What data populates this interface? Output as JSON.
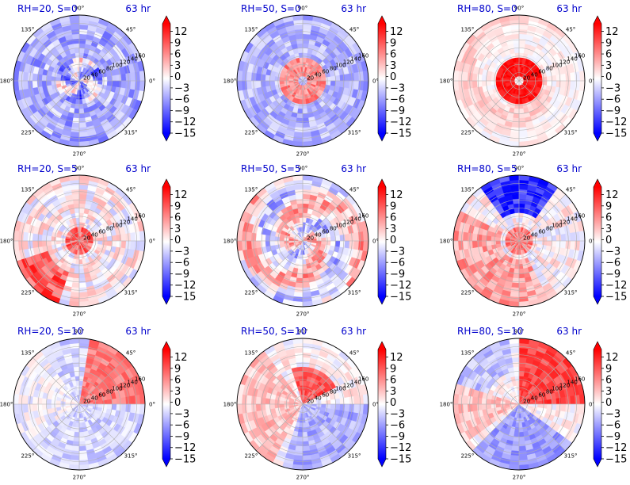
{
  "figure": {
    "time_label": "63 hr",
    "angle_labels": [
      "0°",
      "45°",
      "90°",
      "135°",
      "180°",
      "225°",
      "270°",
      "315°"
    ],
    "radial_labels": [
      "20",
      "40",
      "60",
      "80",
      "100",
      "120",
      "140",
      "160"
    ],
    "colorbar_ticks": [
      "12",
      "9",
      "6",
      "3",
      "0",
      "−3",
      "−6",
      "−9",
      "−12",
      "−15"
    ],
    "colormap": [
      "#0000ff",
      "#ffffff",
      "#ff0000"
    ]
  },
  "chart_data": [
    {
      "type": "heatmap",
      "projection": "polar",
      "title": "RH=20, S=0",
      "time": "63 hr",
      "rlim": [
        0,
        160
      ],
      "clim": [
        -15,
        14
      ],
      "colorbar_ticks": [
        12,
        9,
        6,
        3,
        0,
        -3,
        -6,
        -9,
        -12,
        -15
      ],
      "pattern": "mixed, mostly negative with scattered positive patches near center"
    },
    {
      "type": "heatmap",
      "projection": "polar",
      "title": "RH=50, S=0",
      "time": "63 hr",
      "rlim": [
        0,
        160
      ],
      "clim": [
        -15,
        14
      ],
      "colorbar_ticks": [
        12,
        9,
        6,
        3,
        0,
        -3,
        -6,
        -9,
        -12,
        -15
      ],
      "pattern": "positive ring near center, negative elsewhere"
    },
    {
      "type": "heatmap",
      "projection": "polar",
      "title": "RH=80, S=0",
      "time": "63 hr",
      "rlim": [
        0,
        160
      ],
      "clim": [
        -15,
        14
      ],
      "colorbar_ticks": [
        12,
        9,
        6,
        3,
        0,
        -3,
        -6,
        -9,
        -12,
        -15
      ],
      "pattern": "strong positive ring near center, weak positive spiral outward"
    },
    {
      "type": "heatmap",
      "projection": "polar",
      "title": "RH=20, S=5",
      "time": "63 hr",
      "rlim": [
        0,
        160
      ],
      "clim": [
        -15,
        14
      ],
      "colorbar_ticks": [
        12,
        9,
        6,
        3,
        0,
        -3,
        -6,
        -9,
        -12,
        -15
      ],
      "pattern": "positive core, mixed outer with positive lower-left"
    },
    {
      "type": "heatmap",
      "projection": "polar",
      "title": "RH=50, S=5",
      "time": "63 hr",
      "rlim": [
        0,
        160
      ],
      "clim": [
        -15,
        14
      ],
      "colorbar_ticks": [
        12,
        9,
        6,
        3,
        0,
        -3,
        -6,
        -9,
        -12,
        -15
      ],
      "pattern": "mixed positive and negative bands"
    },
    {
      "type": "heatmap",
      "projection": "polar",
      "title": "RH=80, S=5",
      "time": "63 hr",
      "rlim": [
        0,
        160
      ],
      "clim": [
        -15,
        14
      ],
      "colorbar_ticks": [
        12,
        9,
        6,
        3,
        0,
        -3,
        -6,
        -9,
        -12,
        -15
      ],
      "pattern": "negative upper band, positive left and lower sectors"
    },
    {
      "type": "heatmap",
      "projection": "polar",
      "title": "RH=20, S=10",
      "time": "63 hr",
      "rlim": [
        0,
        160
      ],
      "clim": [
        -15,
        14
      ],
      "colorbar_ticks": [
        12,
        9,
        6,
        3,
        0,
        -3,
        -6,
        -9,
        -12,
        -15
      ],
      "pattern": "positive upper-right quadrant, negative left"
    },
    {
      "type": "heatmap",
      "projection": "polar",
      "title": "RH=50, S=10",
      "time": "63 hr",
      "rlim": [
        0,
        160
      ],
      "clim": [
        -15,
        14
      ],
      "colorbar_ticks": [
        12,
        9,
        6,
        3,
        0,
        -3,
        -6,
        -9,
        -12,
        -15
      ],
      "pattern": "positive upper-center, negative right and lower"
    },
    {
      "type": "heatmap",
      "projection": "polar",
      "title": "RH=80, S=10",
      "time": "63 hr",
      "rlim": [
        0,
        160
      ],
      "clim": [
        -15,
        14
      ],
      "colorbar_ticks": [
        12,
        9,
        6,
        3,
        0,
        -3,
        -6,
        -9,
        -12,
        -15
      ],
      "pattern": "strong positive upper-right, negative lower and upper-left"
    }
  ]
}
